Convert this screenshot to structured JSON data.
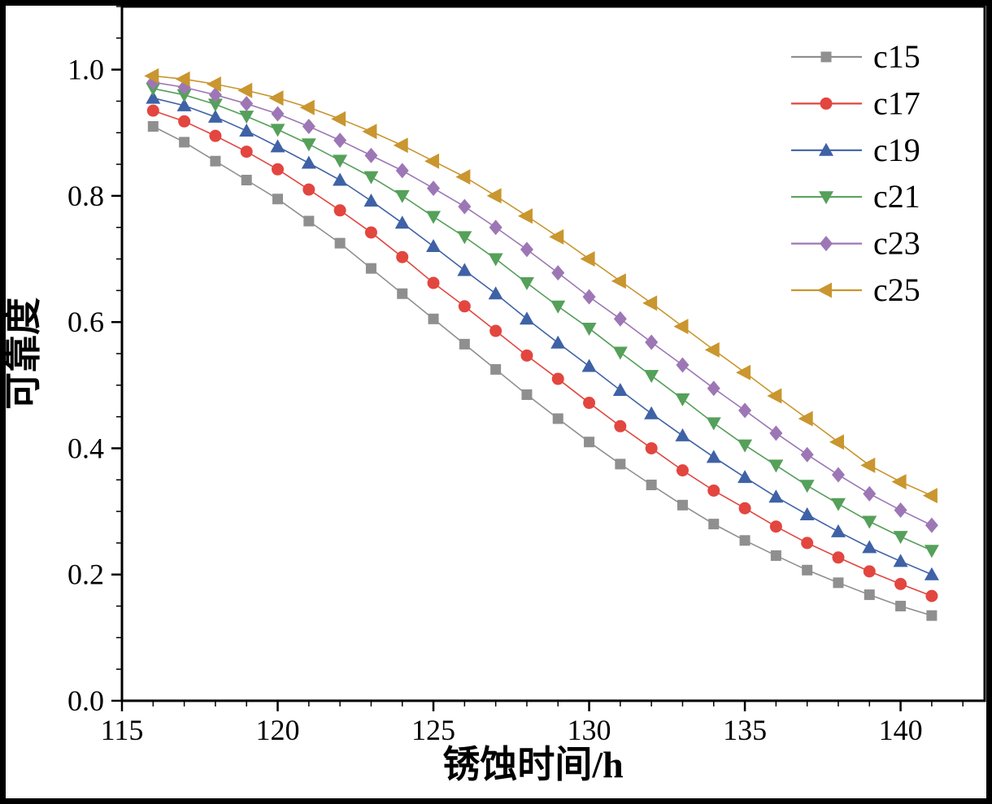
{
  "figure": {
    "background": "#ffffff",
    "border_color": "#000000"
  },
  "chart_data": {
    "type": "line",
    "title": "",
    "xlabel": "锈蚀时间/h",
    "ylabel": "可靠度",
    "xlim": [
      115,
      142.7
    ],
    "ylim": [
      0.0,
      1.1
    ],
    "xticks": [
      115,
      120,
      125,
      130,
      135,
      140
    ],
    "yticks": [
      "0.0",
      "0.2",
      "0.4",
      "0.6",
      "0.8",
      "1.0"
    ],
    "ytick_values": [
      0.0,
      0.2,
      0.4,
      0.6,
      0.8,
      1.0
    ],
    "x_minor_step": 1,
    "y_minor_step": 0.05,
    "grid": false,
    "legend_position": "top-right",
    "x": [
      116,
      117,
      118,
      119,
      120,
      121,
      122,
      123,
      124,
      125,
      126,
      127,
      128,
      129,
      130,
      131,
      132,
      133,
      134,
      135,
      136,
      137,
      138,
      139,
      140,
      141
    ],
    "series": [
      {
        "name": "c15",
        "marker": "square",
        "color": "#8f8f8f",
        "values": [
          0.91,
          0.885,
          0.855,
          0.825,
          0.795,
          0.76,
          0.725,
          0.685,
          0.645,
          0.605,
          0.565,
          0.525,
          0.485,
          0.447,
          0.41,
          0.375,
          0.342,
          0.31,
          0.28,
          0.254,
          0.23,
          0.207,
          0.187,
          0.168,
          0.15,
          0.135
        ]
      },
      {
        "name": "c17",
        "marker": "circle",
        "color": "#e2463f",
        "values": [
          0.935,
          0.918,
          0.895,
          0.87,
          0.842,
          0.81,
          0.777,
          0.742,
          0.703,
          0.662,
          0.625,
          0.586,
          0.547,
          0.51,
          0.472,
          0.435,
          0.4,
          0.365,
          0.333,
          0.305,
          0.276,
          0.25,
          0.227,
          0.205,
          0.185,
          0.166
        ]
      },
      {
        "name": "c19",
        "marker": "triangle-up",
        "color": "#3f62a6",
        "values": [
          0.955,
          0.943,
          0.925,
          0.903,
          0.878,
          0.852,
          0.825,
          0.792,
          0.757,
          0.72,
          0.682,
          0.645,
          0.605,
          0.567,
          0.53,
          0.492,
          0.455,
          0.42,
          0.386,
          0.354,
          0.323,
          0.295,
          0.268,
          0.243,
          0.221,
          0.2
        ]
      },
      {
        "name": "c21",
        "marker": "triangle-down",
        "color": "#55a05a",
        "values": [
          0.97,
          0.96,
          0.945,
          0.926,
          0.905,
          0.882,
          0.856,
          0.83,
          0.8,
          0.767,
          0.735,
          0.7,
          0.662,
          0.625,
          0.59,
          0.552,
          0.515,
          0.478,
          0.44,
          0.405,
          0.373,
          0.341,
          0.312,
          0.284,
          0.26,
          0.238
        ]
      },
      {
        "name": "c23",
        "marker": "diamond",
        "color": "#9d77b5",
        "values": [
          0.98,
          0.972,
          0.96,
          0.946,
          0.93,
          0.91,
          0.888,
          0.864,
          0.84,
          0.812,
          0.783,
          0.75,
          0.715,
          0.678,
          0.64,
          0.605,
          0.568,
          0.532,
          0.495,
          0.46,
          0.424,
          0.39,
          0.358,
          0.328,
          0.302,
          0.278
        ]
      },
      {
        "name": "c25",
        "marker": "triangle-left",
        "color": "#c9962f",
        "values": [
          0.99,
          0.985,
          0.977,
          0.967,
          0.955,
          0.94,
          0.922,
          0.902,
          0.88,
          0.855,
          0.83,
          0.8,
          0.768,
          0.735,
          0.7,
          0.665,
          0.63,
          0.593,
          0.556,
          0.52,
          0.483,
          0.447,
          0.41,
          0.373,
          0.347,
          0.325
        ]
      }
    ]
  }
}
